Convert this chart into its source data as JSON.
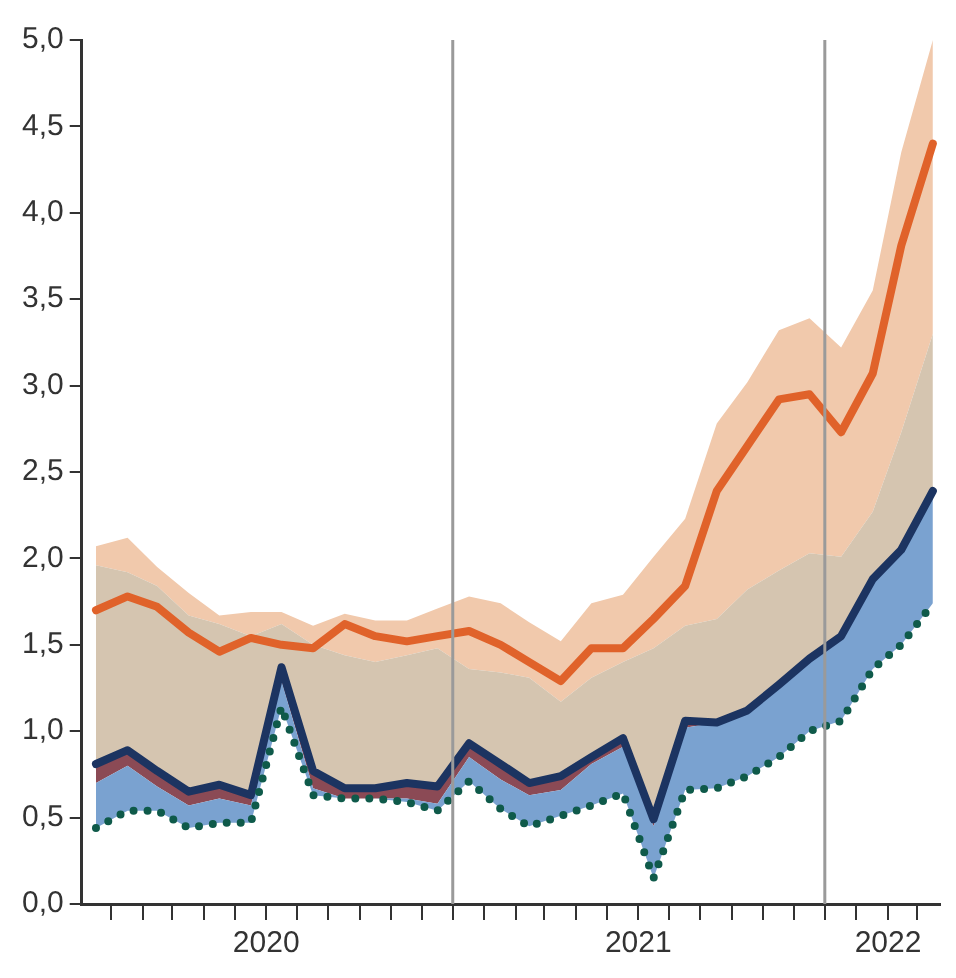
{
  "chart_data": {
    "type": "area",
    "x": [
      "2020-01",
      "2020-02",
      "2020-03",
      "2020-04",
      "2020-05",
      "2020-06",
      "2020-07",
      "2020-08",
      "2020-09",
      "2020-10",
      "2020-11",
      "2020-12",
      "2021-01",
      "2021-02",
      "2021-03",
      "2021-04",
      "2021-05",
      "2021-06",
      "2021-07",
      "2021-08",
      "2021-09",
      "2021-10",
      "2021-11",
      "2021-12",
      "2022-01",
      "2022-02",
      "2022-03",
      "2022-04"
    ],
    "series": [
      {
        "type": "line",
        "line_style": "dotted",
        "color": "#0f5a4a",
        "values": [
          0.44,
          0.54,
          0.54,
          0.44,
          0.47,
          0.47,
          1.14,
          0.63,
          0.61,
          0.61,
          0.59,
          0.54,
          0.71,
          0.55,
          0.45,
          0.51,
          0.57,
          0.64,
          0.15,
          0.66,
          0.67,
          0.74,
          0.85,
          1.0,
          1.06,
          1.36,
          1.5,
          1.74
        ]
      },
      {
        "color": "#7aa2d0",
        "values": [
          0.7,
          0.8,
          0.68,
          0.57,
          0.61,
          0.57,
          1.29,
          0.67,
          0.61,
          0.61,
          0.61,
          0.58,
          0.85,
          0.72,
          0.63,
          0.66,
          0.81,
          0.91,
          0.45,
          1.02,
          1.05,
          1.12,
          1.27,
          1.42,
          1.55,
          1.88,
          2.05,
          2.39
        ]
      },
      {
        "color": "#8b4a55",
        "values": [
          0.81,
          0.89,
          0.77,
          0.65,
          0.69,
          0.63,
          1.37,
          0.77,
          0.67,
          0.67,
          0.7,
          0.68,
          0.93,
          0.81,
          0.7,
          0.74,
          0.85,
          0.96,
          0.49,
          1.06,
          1.05,
          1.12,
          1.27,
          1.42,
          1.55,
          1.88,
          2.05,
          2.39
        ]
      },
      {
        "type": "line",
        "line_style": "solid",
        "color": "#1c3461",
        "values": [
          0.81,
          0.89,
          0.77,
          0.65,
          0.69,
          0.63,
          1.37,
          0.77,
          0.67,
          0.67,
          0.7,
          0.68,
          0.93,
          0.81,
          0.7,
          0.74,
          0.85,
          0.96,
          0.49,
          1.06,
          1.05,
          1.12,
          1.27,
          1.42,
          1.55,
          1.88,
          2.05,
          2.39
        ]
      },
      {
        "color": "#d5c5b0",
        "values": [
          1.96,
          1.92,
          1.84,
          1.67,
          1.62,
          1.55,
          1.62,
          1.5,
          1.44,
          1.4,
          1.44,
          1.48,
          1.36,
          1.34,
          1.31,
          1.17,
          1.31,
          1.4,
          1.48,
          1.61,
          1.65,
          1.82,
          1.93,
          2.03,
          2.01,
          2.27,
          2.73,
          3.3
        ]
      },
      {
        "color": "#f1c9ac",
        "values": [
          2.07,
          2.12,
          1.95,
          1.8,
          1.67,
          1.69,
          1.69,
          1.61,
          1.68,
          1.64,
          1.64,
          1.71,
          1.78,
          1.74,
          1.63,
          1.52,
          1.74,
          1.79,
          2.01,
          2.23,
          2.78,
          3.02,
          3.32,
          3.39,
          3.22,
          3.55,
          4.35,
          5.0
        ]
      },
      {
        "type": "line",
        "line_style": "solid",
        "color": "#e0622a",
        "values": [
          1.7,
          1.78,
          1.72,
          1.57,
          1.46,
          1.54,
          1.5,
          1.48,
          1.62,
          1.55,
          1.52,
          1.55,
          1.58,
          1.5,
          1.4,
          1.29,
          1.48,
          1.48,
          1.65,
          1.84,
          2.39,
          2.65,
          2.92,
          2.95,
          2.73,
          3.07,
          3.81,
          4.4
        ]
      }
    ],
    "xlim": [
      "2019-12-18",
      "2022-04-08"
    ],
    "xticks": [
      {
        "value": "2020-01-16",
        "label": null
      },
      {
        "value": "2020-02-16",
        "label": null
      },
      {
        "value": "2020-03-16",
        "label": null
      },
      {
        "value": "2020-04-16",
        "label": null
      },
      {
        "value": "2020-05-16",
        "label": null
      },
      {
        "value": "2020-06-16",
        "label": "2020"
      },
      {
        "value": "2020-07-16",
        "label": null
      },
      {
        "value": "2020-08-16",
        "label": null
      },
      {
        "value": "2020-09-16",
        "label": null
      },
      {
        "value": "2020-10-16",
        "label": null
      },
      {
        "value": "2020-11-16",
        "label": null
      },
      {
        "value": "2020-12-16",
        "label": null
      },
      {
        "value": "2021-01-16",
        "label": null
      },
      {
        "value": "2021-02-16",
        "label": null
      },
      {
        "value": "2021-03-16",
        "label": null
      },
      {
        "value": "2021-04-16",
        "label": null
      },
      {
        "value": "2021-05-16",
        "label": null
      },
      {
        "value": "2021-06-16",
        "label": "2021"
      },
      {
        "value": "2021-07-16",
        "label": null
      },
      {
        "value": "2021-08-16",
        "label": null
      },
      {
        "value": "2021-09-16",
        "label": null
      },
      {
        "value": "2021-10-16",
        "label": null
      },
      {
        "value": "2021-11-16",
        "label": null
      },
      {
        "value": "2021-12-16",
        "label": null
      },
      {
        "value": "2022-01-16",
        "label": null
      },
      {
        "value": "2022-02-16",
        "label": "2022"
      },
      {
        "value": "2022-03-16",
        "label": null
      }
    ],
    "ylim": [
      0,
      5
    ],
    "yticks": [
      {
        "value": 0,
        "label": "0,0"
      },
      {
        "value": 0.5,
        "label": "0,5"
      },
      {
        "value": 1,
        "label": "1,0"
      },
      {
        "value": 1.5,
        "label": "1,5"
      },
      {
        "value": 2,
        "label": "2,0"
      },
      {
        "value": 2.5,
        "label": "2,5"
      },
      {
        "value": 3,
        "label": "3,0"
      },
      {
        "value": 3.5,
        "label": "3,5"
      },
      {
        "value": 4,
        "label": "4,0"
      },
      {
        "value": 4.5,
        "label": "4,5"
      },
      {
        "value": 5,
        "label": "5,0"
      }
    ],
    "ref_lines": [
      {
        "axis": "x",
        "value": "2020-12-16",
        "color": "#9a9a9a"
      },
      {
        "axis": "x",
        "value": "2021-12-16",
        "color": "#9a9a9a"
      }
    ],
    "grid": false,
    "legend": false,
    "marker": "none"
  }
}
